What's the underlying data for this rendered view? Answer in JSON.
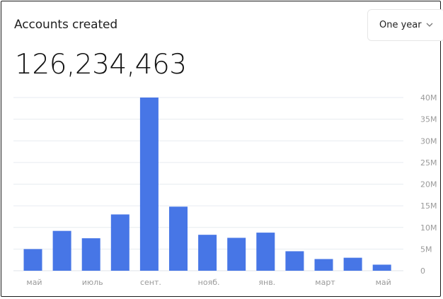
{
  "card": {
    "title": "Accounts created",
    "total": "126,234,463",
    "period": {
      "label": "One year",
      "icon": "chevron-down-icon"
    }
  },
  "colors": {
    "bar": "#4776e6",
    "grid": "#e7ebf0",
    "axis_text": "#9a9a9a"
  },
  "chart_data": {
    "type": "bar",
    "categories": [
      "май",
      "",
      "июль",
      "",
      "сент.",
      "",
      "нояб.",
      "",
      "янв.",
      "",
      "март",
      "",
      "май"
    ],
    "series": [
      {
        "values": [
          5.0,
          9.2,
          7.5,
          13.0,
          40.0,
          14.8,
          8.3,
          7.6,
          8.8,
          4.5,
          2.7,
          3.0,
          1.4
        ]
      }
    ],
    "yticks": [
      "0",
      "5M",
      "10M",
      "15M",
      "20M",
      "25M",
      "30M",
      "35M",
      "40M"
    ],
    "ylim": [
      0,
      40
    ],
    "y_axis_position": "right",
    "grid": true,
    "xlabel": "",
    "ylabel": ""
  }
}
